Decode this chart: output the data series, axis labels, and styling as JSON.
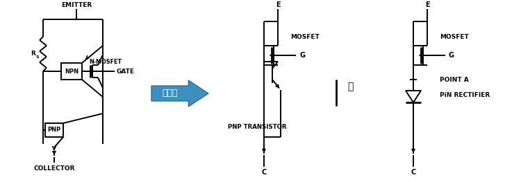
{
  "bg_color": "#ffffff",
  "line_color": "#000000",
  "arrow_fill": "#3d8fbf",
  "arrow_text": "简化为",
  "or_text": "或",
  "sec1": {
    "emitter": "EMITTER",
    "collector": "COLLECTOR",
    "rs": "R",
    "rs_sub": "S",
    "npn": "NPN",
    "pnp": "PNP",
    "nmosfet": "N-MOSFET",
    "gate": "GATE"
  },
  "sec2": {
    "e": "E",
    "c": "C",
    "g": "G",
    "mosfet": "MOSFET",
    "pnp_tr": "PNP TRANSISTOR"
  },
  "sec4": {
    "e": "E",
    "c": "C",
    "g": "G",
    "mosfet": "MOSFET",
    "point_a": "POINT A",
    "pin": "PiN RECTIFIER"
  }
}
